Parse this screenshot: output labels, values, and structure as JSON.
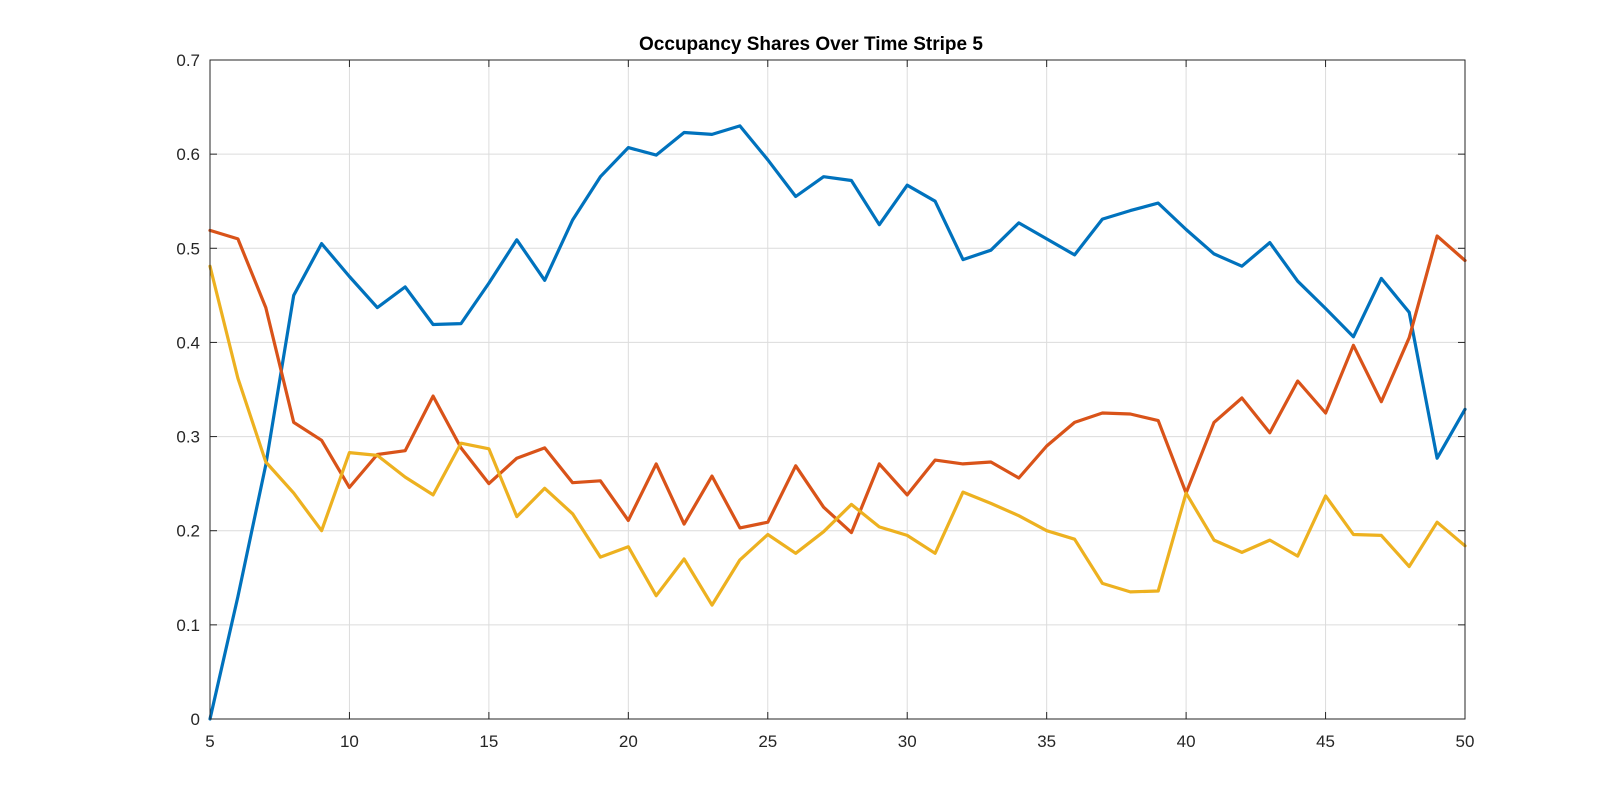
{
  "chart_data": {
    "type": "line",
    "title": "Occupancy Shares Over Time Stripe 5",
    "xlabel": "",
    "ylabel": "",
    "xlim": [
      5,
      50
    ],
    "ylim": [
      0,
      0.7
    ],
    "xticks": [
      5,
      10,
      15,
      20,
      25,
      30,
      35,
      40,
      45,
      50
    ],
    "yticks": [
      0,
      0.1,
      0.2,
      0.3,
      0.4,
      0.5,
      0.6,
      0.7
    ],
    "xtick_labels": [
      "5",
      "10",
      "15",
      "20",
      "25",
      "30",
      "35",
      "40",
      "45",
      "50"
    ],
    "ytick_labels": [
      "0",
      "0.1",
      "0.2",
      "0.3",
      "0.4",
      "0.5",
      "0.6",
      "0.7"
    ],
    "grid": true,
    "x": [
      5,
      6,
      7,
      8,
      9,
      10,
      11,
      12,
      13,
      14,
      15,
      16,
      17,
      18,
      19,
      20,
      21,
      22,
      23,
      24,
      25,
      26,
      27,
      28,
      29,
      30,
      31,
      32,
      33,
      34,
      35,
      36,
      37,
      38,
      39,
      40,
      41,
      42,
      43,
      44,
      45,
      46,
      47,
      48,
      49,
      50
    ],
    "series": [
      {
        "color": "#0072BD",
        "values": [
          0.0,
          0.13,
          0.27,
          0.45,
          0.505,
          0.47,
          0.437,
          0.459,
          0.419,
          0.42,
          0.463,
          0.509,
          0.466,
          0.53,
          0.576,
          0.607,
          0.599,
          0.623,
          0.621,
          0.63,
          0.594,
          0.555,
          0.576,
          0.572,
          0.525,
          0.567,
          0.55,
          0.488,
          0.498,
          0.527,
          0.51,
          0.493,
          0.531,
          0.54,
          0.548,
          0.52,
          0.494,
          0.481,
          0.506,
          0.465,
          0.436,
          0.406,
          0.468,
          0.432,
          0.277,
          0.329
        ]
      },
      {
        "color": "#D95319",
        "values": [
          0.519,
          0.51,
          0.437,
          0.315,
          0.296,
          0.246,
          0.281,
          0.285,
          0.343,
          0.288,
          0.25,
          0.277,
          0.288,
          0.251,
          0.253,
          0.211,
          0.271,
          0.207,
          0.258,
          0.203,
          0.209,
          0.269,
          0.225,
          0.198,
          0.271,
          0.238,
          0.275,
          0.271,
          0.273,
          0.256,
          0.29,
          0.315,
          0.325,
          0.324,
          0.317,
          0.24,
          0.315,
          0.341,
          0.304,
          0.359,
          0.325,
          0.397,
          0.337,
          0.405,
          0.513,
          0.487
        ]
      },
      {
        "color": "#EDB120",
        "values": [
          0.481,
          0.362,
          0.273,
          0.24,
          0.2,
          0.283,
          0.28,
          0.257,
          0.238,
          0.293,
          0.287,
          0.215,
          0.245,
          0.218,
          0.172,
          0.183,
          0.131,
          0.17,
          0.121,
          0.169,
          0.196,
          0.176,
          0.199,
          0.228,
          0.204,
          0.195,
          0.176,
          0.241,
          0.229,
          0.216,
          0.2,
          0.191,
          0.144,
          0.135,
          0.136,
          0.24,
          0.19,
          0.177,
          0.19,
          0.173,
          0.237,
          0.196,
          0.195,
          0.162,
          0.209,
          0.184
        ]
      }
    ]
  }
}
